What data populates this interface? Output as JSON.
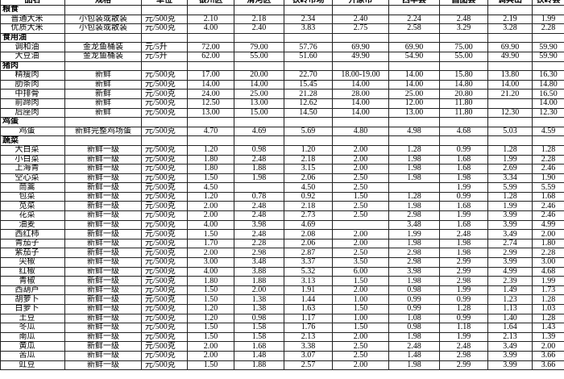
{
  "table": {
    "header": [
      "品名",
      "规格",
      "单位",
      "银州区",
      "清河区",
      "铁岭市场",
      "开原市",
      "西丰县",
      "昌图县",
      "调兵山",
      "铁岭县"
    ],
    "rows": [
      [
        "粮食"
      ],
      [
        "普通大米",
        "小包装或散装",
        "元/500克",
        "2.10",
        "2.18",
        "2.34",
        "2.40",
        "2.24",
        "2.48",
        "2.19",
        "1.99"
      ],
      [
        "优质大米",
        "小包装或散装",
        "元/500克",
        "4.00",
        "2.40",
        "3.83",
        "2.75",
        "2.58",
        "3.29",
        "3.28",
        "2.28"
      ],
      [
        "食用油"
      ],
      [
        "调和油",
        "金龙鱼桶装",
        "元/5升",
        "72.00",
        "79.00",
        "57.76",
        "69.90",
        "69.90",
        "75.00",
        "69.90",
        "59.90"
      ],
      [
        "大豆油",
        "金龙鱼桶装",
        "元/5升",
        "62.00",
        "55.00",
        "51.60",
        "49.90",
        "54.90",
        "55.00",
        "49.90",
        "59.90"
      ],
      [
        "猪肉"
      ],
      [
        "精瘦肉",
        "新鲜",
        "元/500克",
        "17.00",
        "20.00",
        "22.70",
        "18.00-19.00",
        "14.00",
        "15.80",
        "13.80",
        "16.30"
      ],
      [
        "肋条肉",
        "新鲜",
        "元/500克",
        "14.00",
        "14.00",
        "15.45",
        "14.00",
        "14.00",
        "14.80",
        "14.00",
        "14.80"
      ],
      [
        "中排骨",
        "新鲜",
        "元/500克",
        "24.00",
        "25.00",
        "21.28",
        "28.00",
        "25.00",
        "20.80",
        "21.20",
        "16.50"
      ],
      [
        "前蹄肉",
        "新鲜",
        "元/500克",
        "12.50",
        "13.00",
        "12.62",
        "14.00",
        "12.00",
        "11.80",
        null,
        "14.00"
      ],
      [
        "后座肉",
        "新鲜",
        "元/500克",
        "13.00",
        "15.00",
        "14.50",
        "14.00",
        "13.00",
        "11.80",
        "12.30",
        "12.30"
      ],
      [
        "鸡蛋"
      ],
      [
        "鸡蛋",
        "新鲜完整鸡场蛋",
        "元/500克",
        "4.70",
        "4.69",
        "5.69",
        "4.80",
        "4.98",
        "4.68",
        "5.03",
        "4.59"
      ],
      [
        "蔬菜"
      ],
      [
        "大白菜",
        "新鲜一级",
        "元/500克",
        "1.20",
        "0.98",
        "1.20",
        "2.00",
        "1.28",
        "0.99",
        "1.28",
        "1.28"
      ],
      [
        "小白菜",
        "新鲜一级",
        "元/500克",
        "1.80",
        "2.48",
        "2.18",
        "2.00",
        "1.98",
        "1.68",
        "1.99",
        "2.28"
      ],
      [
        "上海青",
        "新鲜一级",
        "元/500克",
        "1.80",
        "1.88",
        "3.15",
        "2.00",
        "1.98",
        "1.68",
        "2.69",
        "2.46"
      ],
      [
        "空心菜",
        "新鲜一级",
        "元/500克",
        "1.50",
        "1.98",
        "2.06",
        "2.50",
        "1.98",
        "1.98",
        "3.34",
        "1.90"
      ],
      [
        "茼蒿",
        "新鲜一级",
        "元/500克",
        "4.50",
        null,
        "4.50",
        "2.50",
        null,
        "1.99",
        "5.99",
        "5.59"
      ],
      [
        "包菜",
        "新鲜一级",
        "元/500克",
        "1.20",
        "0.78",
        "0.92",
        "1.50",
        "1.28",
        "0.99",
        "1.28",
        "1.68"
      ],
      [
        "苋菜",
        "新鲜一级",
        "元/500克",
        "2.00",
        "2.48",
        "2.18",
        "2.50",
        "1.98",
        "1.68",
        "1.99",
        "2.46"
      ],
      [
        "花菜",
        "新鲜一级",
        "元/500克",
        "2.00",
        "2.48",
        "2.73",
        "2.50",
        "2.98",
        "1.99",
        "3.99",
        "2.46"
      ],
      [
        "油麦",
        "新鲜一级",
        "元/500克",
        "4.00",
        "3.98",
        "4.69",
        null,
        "3.48",
        "1.68",
        "3.99",
        "4.99"
      ],
      [
        "西红柿",
        "新鲜一级",
        "元/500克",
        "1.50",
        "2.48",
        "2.08",
        "2.00",
        "1.99",
        "2.48",
        "3.49",
        "2.00"
      ],
      [
        "青茄子",
        "新鲜一级",
        "元/500克",
        "1.70",
        "2.28",
        "2.06",
        "2.00",
        "1.98",
        "1.98",
        "2.74",
        "1.80"
      ],
      [
        "紫茄子",
        "新鲜一级",
        "元/500克",
        "2.00",
        "2.98",
        "2.87",
        "2.50",
        "2.98",
        "1.98",
        "2.99",
        "2.28"
      ],
      [
        "尖椒",
        "新鲜一级",
        "元/500克",
        "3.00",
        "3.48",
        "3.37",
        "3.50",
        "2.98",
        "2.99",
        "3.99",
        "3.00"
      ],
      [
        "红椒",
        "新鲜一级",
        "元/500克",
        "4.00",
        "3.88",
        "5.32",
        "6.00",
        "3.98",
        "2.99",
        "4.99",
        "4.68"
      ],
      [
        "青椒",
        "新鲜一级",
        "元/500克",
        "1.80",
        "1.88",
        "3.13",
        "1.50",
        "1.98",
        "2.98",
        "2.39",
        "1.99"
      ],
      [
        "西葫芦",
        "新鲜一级",
        "元/500克",
        "1.50",
        "2.00",
        "1.91",
        "2.00",
        "0.98",
        "1.99",
        "1.49",
        "1.73"
      ],
      [
        "胡萝卜",
        "新鲜一级",
        "元/500克",
        "1.50",
        "1.38",
        "1.44",
        "1.00",
        "0.99",
        "0.99",
        "1.23",
        "1.28"
      ],
      [
        "白萝卜",
        "新鲜一级",
        "元/500克",
        "1.20",
        "1.38",
        "1.63",
        "1.50",
        "0.99",
        "1.28",
        "1.13",
        "1.03"
      ],
      [
        "土豆",
        "新鲜一级",
        "元/500克",
        "1.20",
        "0.98",
        "1.17",
        "1.00",
        "1.08",
        "0.99",
        "1.40",
        "1.28"
      ],
      [
        "冬瓜",
        "新鲜一级",
        "元/500克",
        "1.50",
        "1.58",
        "1.76",
        "1.50",
        "0.98",
        "1.18",
        "1.64",
        "1.43"
      ],
      [
        "南瓜",
        "新鲜一级",
        "元/500克",
        "1.50",
        "1.58",
        "2.13",
        "2.00",
        "1.98",
        "1.99",
        "2.13",
        "1.39"
      ],
      [
        "黄瓜",
        "新鲜一级",
        "元/500克",
        "2.00",
        "1.68",
        "3.38",
        "2.50",
        "2.48",
        "2.48",
        "3.49",
        "2.00"
      ],
      [
        "苦瓜",
        "新鲜一级",
        "元/500克",
        "2.00",
        "1.48",
        "3.07",
        "2.50",
        "1.48",
        "2.98",
        "3.99",
        "3.66"
      ],
      [
        "豇豆",
        "新鲜一级",
        "元/500克",
        "1.50",
        "1.88",
        "2.57",
        "2.00",
        "1.98",
        "2.99",
        "3.99",
        "3.66"
      ]
    ]
  }
}
